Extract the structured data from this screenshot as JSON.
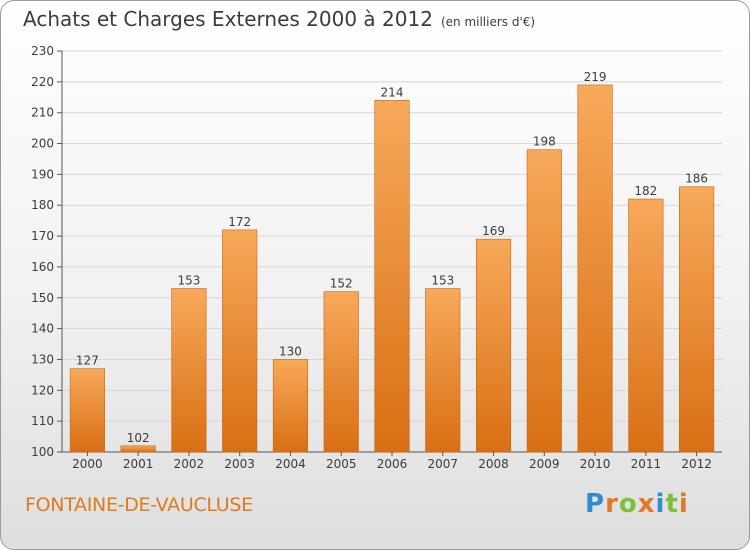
{
  "header": {
    "title": "Achats et Charges Externes 2000 à 2012",
    "unit": "(en milliers d'€)"
  },
  "footer": {
    "location": "FONTAINE-DE-VAUCLUSE",
    "logo": [
      "P",
      "r",
      "o",
      "x",
      "i",
      "t",
      "i"
    ]
  },
  "colors": {
    "bar_top": "#f7a95a",
    "bar_bottom": "#d96f14",
    "town": "#e07a1e"
  },
  "chart_data": {
    "type": "bar",
    "title": "Achats et Charges Externes 2000 à 2012",
    "subtitle": "(en milliers d'€)",
    "categories": [
      "2000",
      "2001",
      "2002",
      "2003",
      "2004",
      "2005",
      "2006",
      "2007",
      "2008",
      "2009",
      "2010",
      "2011",
      "2012"
    ],
    "values": [
      127,
      102,
      153,
      172,
      130,
      152,
      214,
      153,
      169,
      198,
      219,
      182,
      186
    ],
    "ylim": [
      100,
      230
    ],
    "yticks": [
      100,
      110,
      120,
      130,
      140,
      150,
      160,
      170,
      180,
      190,
      200,
      210,
      220,
      230
    ],
    "grid": true,
    "data_labels": true
  }
}
